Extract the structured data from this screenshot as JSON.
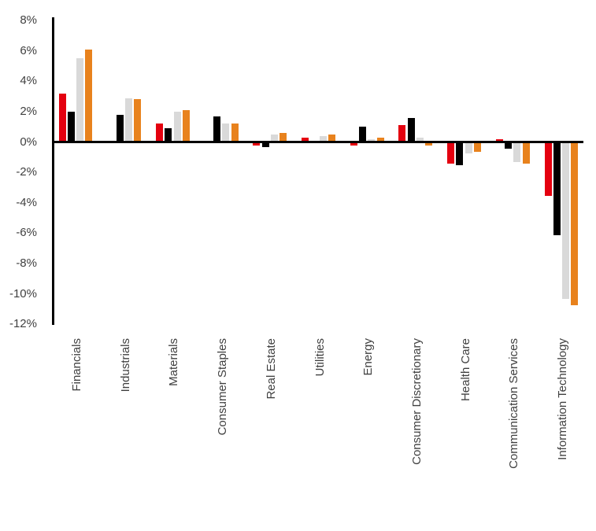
{
  "chart_data": {
    "type": "bar",
    "title": "",
    "subtitle": "",
    "categories": [
      "Financials",
      "Industrials",
      "Materials",
      "Consumer Staples",
      "Real Estate",
      "Utilities",
      "Energy",
      "Consumer Discretionary",
      "Health Care",
      "Communication Services",
      "Information Technology"
    ],
    "series": [
      {
        "name": "series-red",
        "color": "#e4000f",
        "values": [
          3.2,
          0,
          1.2,
          0,
          -0.2,
          0.3,
          -0.2,
          1.1,
          -1.4,
          0.2,
          -3.5
        ]
      },
      {
        "name": "series-black",
        "color": "#000000",
        "values": [
          2.0,
          1.8,
          0.9,
          1.7,
          -0.3,
          0,
          1.0,
          1.6,
          -1.5,
          -0.4,
          -6.1
        ]
      },
      {
        "name": "series-gray",
        "color": "#d9d9d9",
        "values": [
          5.5,
          2.9,
          2.0,
          1.2,
          0.5,
          0.4,
          0.2,
          0.3,
          -0.7,
          -1.3,
          -10.3
        ]
      },
      {
        "name": "series-orange",
        "color": "#e8821d",
        "values": [
          6.1,
          2.8,
          2.1,
          1.2,
          0.6,
          0.5,
          0.3,
          -0.2,
          -0.6,
          -1.4,
          -10.7
        ]
      }
    ],
    "y_axis": {
      "unit": "%",
      "min": -12,
      "max": 8,
      "step": 2,
      "tick_labels": [
        "8%",
        "6%",
        "4%",
        "2%",
        "0%",
        "-2%",
        "-4%",
        "-6%",
        "-8%",
        "-10%",
        "-12%"
      ],
      "tick_values": [
        8,
        6,
        4,
        2,
        0,
        -2,
        -4,
        -6,
        -8,
        -10,
        -12
      ]
    },
    "xlabel": "",
    "ylabel": "",
    "grid": false,
    "legend_position": "none",
    "axis_color": "#000000",
    "label_color": "#404040",
    "background_color": "#ffffff"
  }
}
